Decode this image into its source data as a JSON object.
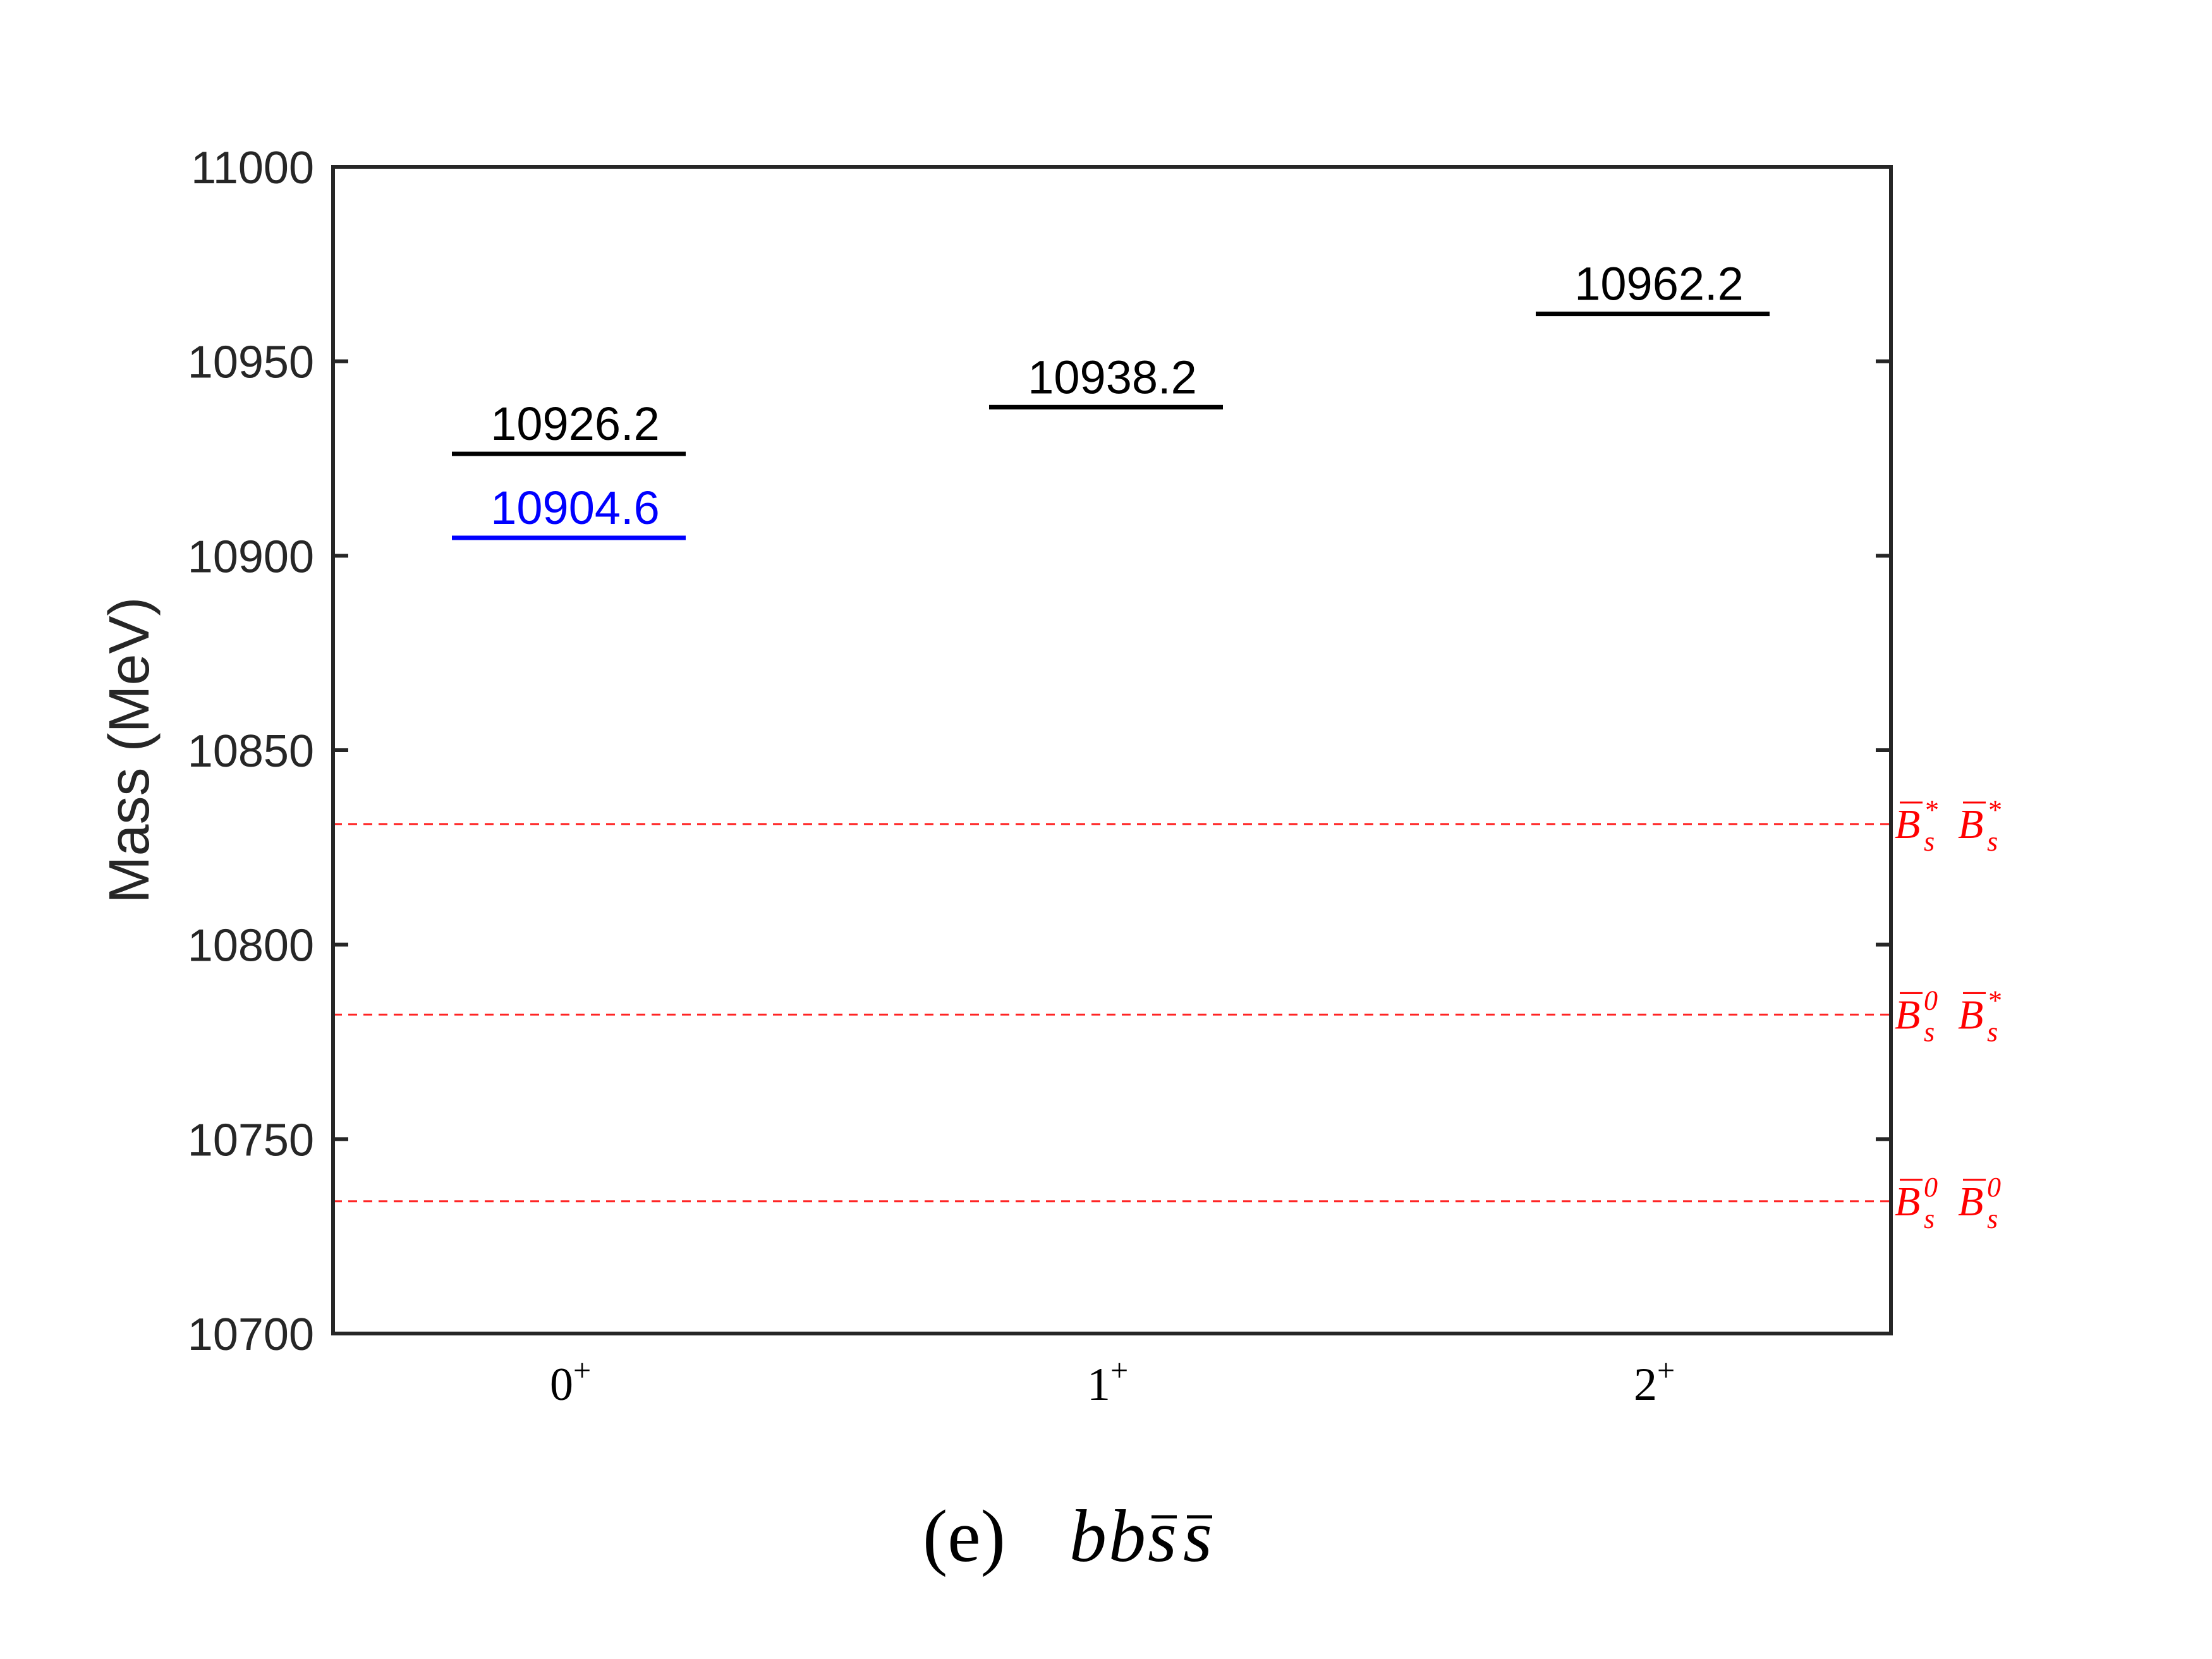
{
  "chart_data": {
    "type": "level-diagram",
    "ylabel": "Mass (MeV)",
    "ylim": [
      10700,
      11000
    ],
    "yticks": [
      10700,
      10750,
      10800,
      10850,
      10900,
      10950,
      11000
    ],
    "categories": [
      {
        "base": "0",
        "sup": "+"
      },
      {
        "base": "1",
        "sup": "+"
      },
      {
        "base": "2",
        "sup": "+"
      }
    ],
    "levels": [
      {
        "category": 0,
        "value": 10926.2,
        "label": "10926.2",
        "color": "#000000"
      },
      {
        "category": 0,
        "value": 10904.6,
        "label": "10904.6",
        "color": "#0000ff"
      },
      {
        "category": 1,
        "value": 10938.2,
        "label": "10938.2",
        "color": "#000000"
      },
      {
        "category": 2,
        "value": 10962.2,
        "label": "10962.2",
        "color": "#000000"
      }
    ],
    "thresholds": [
      {
        "value": 10831,
        "label": [
          {
            "base": "B",
            "bar": true,
            "sup": "*",
            "sub": "s"
          },
          {
            "base": "B",
            "bar": true,
            "sup": "*",
            "sub": "s"
          }
        ],
        "color": "#ff0000"
      },
      {
        "value": 10782,
        "label": [
          {
            "base": "B",
            "bar": true,
            "sup": "0",
            "sub": "s"
          },
          {
            "base": "B",
            "bar": true,
            "sup": "*",
            "sub": "s"
          }
        ],
        "color": "#ff0000"
      },
      {
        "value": 10734,
        "label": [
          {
            "base": "B",
            "bar": true,
            "sup": "0",
            "sub": "s"
          },
          {
            "base": "B",
            "bar": true,
            "sup": "0",
            "sub": "s"
          }
        ],
        "color": "#ff0000"
      }
    ],
    "caption": {
      "prefix": "(e)",
      "formula": [
        {
          "t": "b",
          "bar": false
        },
        {
          "t": "b",
          "bar": false
        },
        {
          "t": "s",
          "bar": true
        },
        {
          "t": "s",
          "bar": true
        }
      ]
    },
    "grid": false
  }
}
